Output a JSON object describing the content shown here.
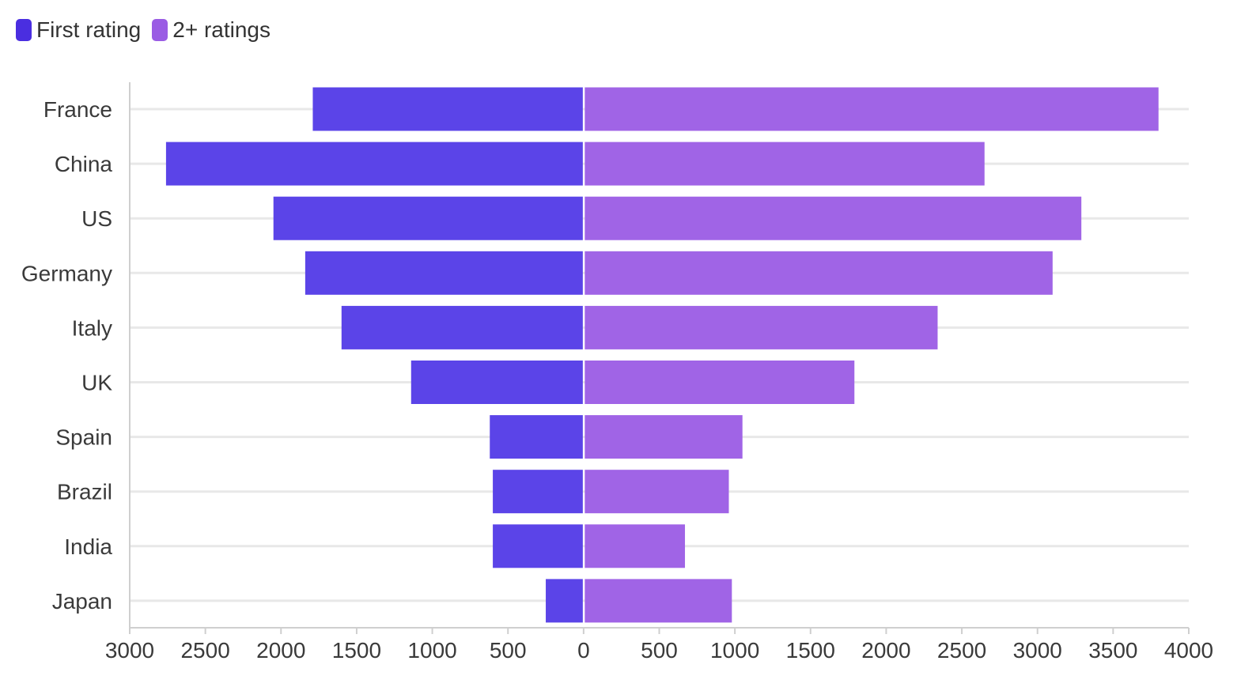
{
  "colors": {
    "first": "#5b44e8",
    "repeat": "#a064e6",
    "grid": "#e8e8e8",
    "axis": "#cfcfcf",
    "text": "#3a3a3a"
  },
  "legend": [
    {
      "label": "First rating",
      "color": "#4a2ee0"
    },
    {
      "label": "2+ ratings",
      "color": "#9a5ce4"
    }
  ],
  "chart_data": {
    "type": "bar",
    "orientation": "horizontal-diverging",
    "categories": [
      "France",
      "China",
      "US",
      "Germany",
      "Italy",
      "UK",
      "Spain",
      "Brazil",
      "India",
      "Japan"
    ],
    "series": [
      {
        "name": "First rating",
        "direction": "left",
        "values": [
          1790,
          2760,
          2050,
          1840,
          1600,
          1140,
          620,
          600,
          600,
          250
        ]
      },
      {
        "name": "2+ ratings",
        "direction": "right",
        "values": [
          3800,
          2650,
          3290,
          3100,
          2340,
          1790,
          1050,
          960,
          670,
          980
        ]
      }
    ],
    "xlim": [
      -3000,
      4000
    ],
    "xticks": [
      -3000,
      -2500,
      -2000,
      -1500,
      -1000,
      -500,
      0,
      500,
      1000,
      1500,
      2000,
      2500,
      3000,
      3500,
      4000
    ],
    "xtick_labels": [
      "3000",
      "2500",
      "2000",
      "1500",
      "1000",
      "500",
      "0",
      "500",
      "1000",
      "1500",
      "2000",
      "2500",
      "3000",
      "3500",
      "4000"
    ],
    "grid": true,
    "legend_position": "top-left",
    "title": "",
    "xlabel": "",
    "ylabel": ""
  }
}
